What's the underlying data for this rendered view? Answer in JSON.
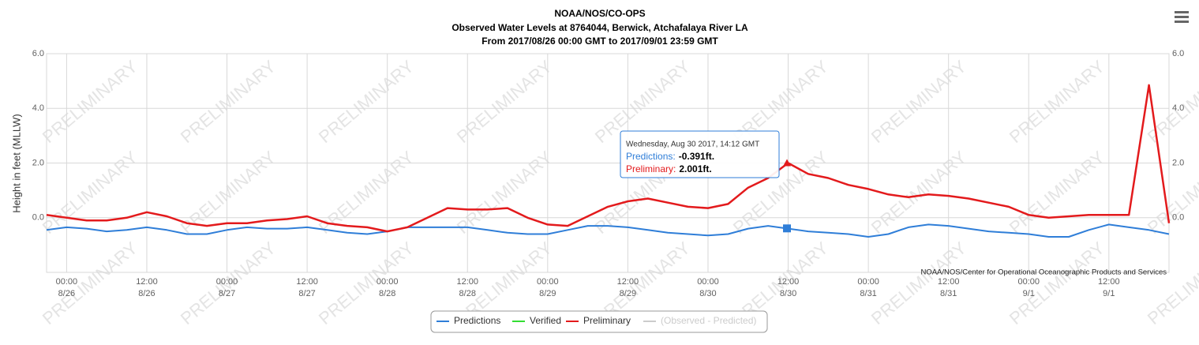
{
  "chart_data": {
    "type": "line",
    "title": "NOAA/NOS/CO-OPS",
    "subtitle": "Observed Water Levels at 8764044, Berwick, Atchafalaya River LA",
    "subtitle2": "From 2017/08/26 00:00 GMT to 2017/09/01 23:59 GMT",
    "y_label": "Height in feet (MLLW)",
    "watermark": "PRELIMINARY",
    "credits": "NOAA/NOS/Center for Operational Oceanographic Products and Services",
    "categories": [
      "8/25 21:00",
      "8/26 00:00",
      "8/26 03:00",
      "8/26 06:00",
      "8/26 09:00",
      "8/26 12:00",
      "8/26 15:00",
      "8/26 18:00",
      "8/26 21:00",
      "8/27 00:00",
      "8/27 03:00",
      "8/27 06:00",
      "8/27 09:00",
      "8/27 12:00",
      "8/27 15:00",
      "8/27 18:00",
      "8/27 21:00",
      "8/28 00:00",
      "8/28 03:00",
      "8/28 06:00",
      "8/28 09:00",
      "8/28 12:00",
      "8/28 15:00",
      "8/28 18:00",
      "8/28 21:00",
      "8/29 00:00",
      "8/29 03:00",
      "8/29 06:00",
      "8/29 09:00",
      "8/29 12:00",
      "8/29 15:00",
      "8/29 18:00",
      "8/29 21:00",
      "8/30 00:00",
      "8/30 03:00",
      "8/30 06:00",
      "8/30 09:00",
      "8/30 12:00",
      "8/30 15:00",
      "8/30 18:00",
      "8/30 21:00",
      "8/31 00:00",
      "8/31 03:00",
      "8/31 06:00",
      "8/31 09:00",
      "8/31 12:00",
      "8/31 15:00",
      "8/31 18:00",
      "8/31 21:00",
      "9/1 00:00",
      "9/1 03:00",
      "9/1 06:00",
      "9/1 09:00",
      "9/1 12:00",
      "9/1 15:00",
      "9/1 18:00",
      "9/1 21:00"
    ],
    "series": [
      {
        "name": "Predictions",
        "color": "#2f7ed8",
        "values": [
          -0.45,
          -0.35,
          -0.4,
          -0.5,
          -0.45,
          -0.35,
          -0.45,
          -0.6,
          -0.6,
          -0.45,
          -0.35,
          -0.4,
          -0.4,
          -0.35,
          -0.45,
          -0.55,
          -0.6,
          -0.5,
          -0.35,
          -0.35,
          -0.35,
          -0.35,
          -0.45,
          -0.55,
          -0.6,
          -0.6,
          -0.45,
          -0.3,
          -0.3,
          -0.35,
          -0.45,
          -0.55,
          -0.6,
          -0.65,
          -0.6,
          -0.4,
          -0.3,
          -0.4,
          -0.5,
          -0.55,
          -0.6,
          -0.7,
          -0.6,
          -0.35,
          -0.25,
          -0.3,
          -0.4,
          -0.5,
          -0.55,
          -0.6,
          -0.7,
          -0.7,
          -0.45,
          -0.25,
          -0.35,
          -0.45,
          -0.6
        ]
      },
      {
        "name": "Verified",
        "color": "#33dd33",
        "values": [
          null,
          null,
          null,
          null,
          null,
          null,
          null,
          null,
          null,
          null,
          null,
          null,
          null,
          null,
          null,
          null,
          null,
          null,
          null,
          null,
          null,
          null,
          null,
          null,
          null,
          null,
          null,
          null,
          null,
          null,
          null,
          null,
          null,
          null,
          null,
          null,
          null,
          null,
          null,
          null,
          null,
          null,
          null,
          null,
          null,
          null,
          null,
          null,
          null,
          null,
          null,
          null,
          null,
          null,
          null,
          null,
          null
        ]
      },
      {
        "name": "Preliminary",
        "color": "#e31a1c",
        "values": [
          0.1,
          0.0,
          -0.1,
          -0.1,
          0.0,
          0.2,
          0.05,
          -0.2,
          -0.3,
          -0.2,
          -0.2,
          -0.1,
          -0.05,
          0.05,
          -0.2,
          -0.3,
          -0.35,
          -0.5,
          -0.35,
          0.0,
          0.35,
          0.3,
          0.3,
          0.35,
          0.0,
          -0.25,
          -0.3,
          0.05,
          0.4,
          0.6,
          0.7,
          0.55,
          0.4,
          0.35,
          0.5,
          1.1,
          1.45,
          2.0,
          1.6,
          1.45,
          1.2,
          1.05,
          0.85,
          0.75,
          0.85,
          0.8,
          0.7,
          0.55,
          0.4,
          0.1,
          0.0,
          0.05,
          0.1,
          0.1,
          0.1,
          4.85,
          -0.2
        ]
      },
      {
        "name": "(Observed - Predicted)",
        "color": "#cccccc",
        "values": [
          null,
          null,
          null,
          null,
          null,
          null,
          null,
          null,
          null,
          null,
          null,
          null,
          null,
          null,
          null,
          null,
          null,
          null,
          null,
          null,
          null,
          null,
          null,
          null,
          null,
          null,
          null,
          null,
          null,
          null,
          null,
          null,
          null,
          null,
          null,
          null,
          null,
          null,
          null,
          null,
          null,
          null,
          null,
          null,
          null,
          null,
          null,
          null,
          null,
          null,
          null,
          null,
          null,
          null,
          null,
          null,
          null
        ]
      }
    ],
    "xticks": [
      {
        "value": "8/26 00:00",
        "label": [
          "00:00",
          "8/26"
        ]
      },
      {
        "value": "8/26 12:00",
        "label": [
          "12:00",
          "8/26"
        ]
      },
      {
        "value": "8/27 00:00",
        "label": [
          "00:00",
          "8/27"
        ]
      },
      {
        "value": "8/27 12:00",
        "label": [
          "12:00",
          "8/27"
        ]
      },
      {
        "value": "8/28 00:00",
        "label": [
          "00:00",
          "8/28"
        ]
      },
      {
        "value": "8/28 12:00",
        "label": [
          "12:00",
          "8/28"
        ]
      },
      {
        "value": "8/29 00:00",
        "label": [
          "00:00",
          "8/29"
        ]
      },
      {
        "value": "8/29 12:00",
        "label": [
          "12:00",
          "8/29"
        ]
      },
      {
        "value": "8/30 00:00",
        "label": [
          "00:00",
          "8/30"
        ]
      },
      {
        "value": "8/30 12:00",
        "label": [
          "12:00",
          "8/30"
        ]
      },
      {
        "value": "8/31 00:00",
        "label": [
          "00:00",
          "8/31"
        ]
      },
      {
        "value": "8/31 12:00",
        "label": [
          "12:00",
          "8/31"
        ]
      },
      {
        "value": "9/1 00:00",
        "label": [
          "00:00",
          "9/1"
        ]
      },
      {
        "value": "9/1 12:00",
        "label": [
          "12:00",
          "9/1"
        ]
      }
    ],
    "ylim": [
      -2,
      6
    ],
    "yticks": [
      {
        "value": 6,
        "label": "6.0"
      },
      {
        "value": 4,
        "label": "4.0"
      },
      {
        "value": 2,
        "label": "2.0"
      },
      {
        "value": 0,
        "label": "0.0"
      }
    ],
    "y2lim": [
      -2,
      6
    ],
    "y2ticks": [
      {
        "value": 6,
        "label": "6.0"
      },
      {
        "value": 4,
        "label": "4.0"
      },
      {
        "value": 2,
        "label": "2.0"
      },
      {
        "value": 0,
        "label": "0.0"
      }
    ],
    "grid": true,
    "legend": "bottom",
    "tooltip": {
      "header": "Wednesday, Aug 30 2017, 14:12 GMT",
      "rows": [
        {
          "name": "Predictions:",
          "value": -0.391,
          "label": "-0.391ft.",
          "color": "#2f7ed8"
        },
        {
          "name": "Preliminary:",
          "value": 2.001,
          "label": "2.001ft.",
          "color": "#e31a1c"
        }
      ]
    }
  }
}
